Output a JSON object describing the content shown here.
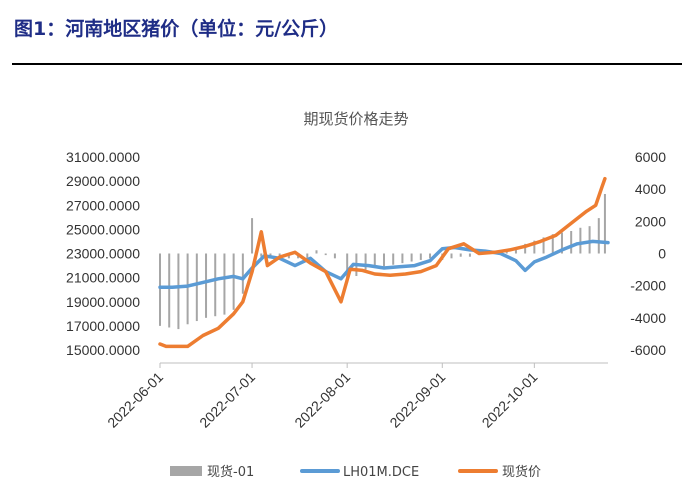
{
  "figure_title": "图1：河南地区猪价（单位：元/公斤）",
  "chart_data": {
    "type": "line",
    "title": "期现货价格走势",
    "xlabel": "",
    "ylabel": "",
    "y_left": {
      "ticks": [
        "31000.0000",
        "29000.0000",
        "27000.0000",
        "25000.0000",
        "23000.0000",
        "21000.0000",
        "19000.0000",
        "17000.0000",
        "15000.0000"
      ],
      "range": [
        15000,
        31000
      ]
    },
    "y_right": {
      "ticks": [
        "6000",
        "4000",
        "2000",
        "0",
        "-2000",
        "-4000",
        "-6000"
      ],
      "range": [
        -6000,
        6000
      ]
    },
    "x_ticks": [
      "2022-06-01",
      "2022-07-01",
      "2022-08-01",
      "2022-09-01",
      "2022-10-01"
    ],
    "x_range": [
      "2022-06-01",
      "2022-10-25"
    ],
    "legend_position": "bottom",
    "grid": false,
    "series": [
      {
        "name": "现货-01",
        "type": "bar",
        "axis": "right",
        "color": "#a6a6a6",
        "x": [
          "2022-06-01",
          "2022-06-04",
          "2022-06-07",
          "2022-06-10",
          "2022-06-13",
          "2022-06-16",
          "2022-06-19",
          "2022-06-22",
          "2022-06-25",
          "2022-06-28",
          "2022-07-01",
          "2022-07-04",
          "2022-07-07",
          "2022-07-10",
          "2022-07-13",
          "2022-07-16",
          "2022-07-19",
          "2022-07-22",
          "2022-07-25",
          "2022-07-28",
          "2022-08-01",
          "2022-08-04",
          "2022-08-07",
          "2022-08-10",
          "2022-08-13",
          "2022-08-16",
          "2022-08-19",
          "2022-08-22",
          "2022-08-25",
          "2022-08-28",
          "2022-09-01",
          "2022-09-04",
          "2022-09-07",
          "2022-09-10",
          "2022-09-13",
          "2022-09-16",
          "2022-09-19",
          "2022-09-22",
          "2022-09-25",
          "2022-09-28",
          "2022-10-01",
          "2022-10-04",
          "2022-10-07",
          "2022-10-10",
          "2022-10-13",
          "2022-10-16",
          "2022-10-19",
          "2022-10-22",
          "2022-10-24"
        ],
        "values": [
          -4500,
          -4600,
          -4700,
          -4400,
          -4200,
          -4000,
          -3900,
          -3800,
          -3500,
          -2500,
          2200,
          -200,
          -300,
          -300,
          -300,
          -300,
          -300,
          200,
          -100,
          -300,
          -1800,
          -1400,
          -1000,
          -900,
          -800,
          -700,
          -600,
          -500,
          -400,
          -300,
          -400,
          -300,
          -200,
          -200,
          0,
          0,
          100,
          200,
          400,
          600,
          800,
          1000,
          1200,
          1300,
          1400,
          1600,
          1700,
          2200,
          3700
        ]
      },
      {
        "name": "LH01M.DCE",
        "type": "line",
        "axis": "left",
        "color": "#5b9bd5",
        "x": [
          "2022-06-01",
          "2022-06-05",
          "2022-06-10",
          "2022-06-15",
          "2022-06-20",
          "2022-06-25",
          "2022-06-28",
          "2022-07-01",
          "2022-07-05",
          "2022-07-10",
          "2022-07-15",
          "2022-07-20",
          "2022-07-25",
          "2022-07-30",
          "2022-08-03",
          "2022-08-08",
          "2022-08-13",
          "2022-08-18",
          "2022-08-23",
          "2022-08-28",
          "2022-09-01",
          "2022-09-05",
          "2022-09-10",
          "2022-09-15",
          "2022-09-20",
          "2022-09-25",
          "2022-09-28",
          "2022-10-01",
          "2022-10-05",
          "2022-10-10",
          "2022-10-15",
          "2022-10-20",
          "2022-10-25"
        ],
        "values": [
          20200,
          20200,
          20300,
          20600,
          20900,
          21100,
          20900,
          21800,
          22800,
          22600,
          22000,
          22600,
          21500,
          20900,
          22100,
          22000,
          21800,
          21900,
          22000,
          22400,
          23400,
          23500,
          23300,
          23200,
          23000,
          22400,
          21600,
          22300,
          22700,
          23300,
          23800,
          24000,
          23900
        ]
      },
      {
        "name": "现货价",
        "type": "line",
        "axis": "left",
        "color": "#ed7d31",
        "x": [
          "2022-06-01",
          "2022-06-03",
          "2022-06-10",
          "2022-06-15",
          "2022-06-20",
          "2022-06-25",
          "2022-06-28",
          "2022-07-01",
          "2022-07-04",
          "2022-07-06",
          "2022-07-10",
          "2022-07-15",
          "2022-07-20",
          "2022-07-25",
          "2022-07-30",
          "2022-08-02",
          "2022-08-06",
          "2022-08-10",
          "2022-08-15",
          "2022-08-20",
          "2022-08-25",
          "2022-08-30",
          "2022-09-03",
          "2022-09-08",
          "2022-09-13",
          "2022-09-18",
          "2022-09-23",
          "2022-09-28",
          "2022-10-03",
          "2022-10-08",
          "2022-10-13",
          "2022-10-18",
          "2022-10-21",
          "2022-10-23",
          "2022-10-24"
        ],
        "values": [
          15500,
          15300,
          15300,
          16200,
          16800,
          18000,
          19000,
          21500,
          24800,
          22000,
          22700,
          23100,
          22200,
          21500,
          19000,
          21700,
          21600,
          21300,
          21200,
          21300,
          21500,
          22000,
          23400,
          23800,
          23000,
          23100,
          23300,
          23600,
          24000,
          24500,
          25500,
          26500,
          27000,
          28500,
          29200
        ]
      }
    ]
  }
}
